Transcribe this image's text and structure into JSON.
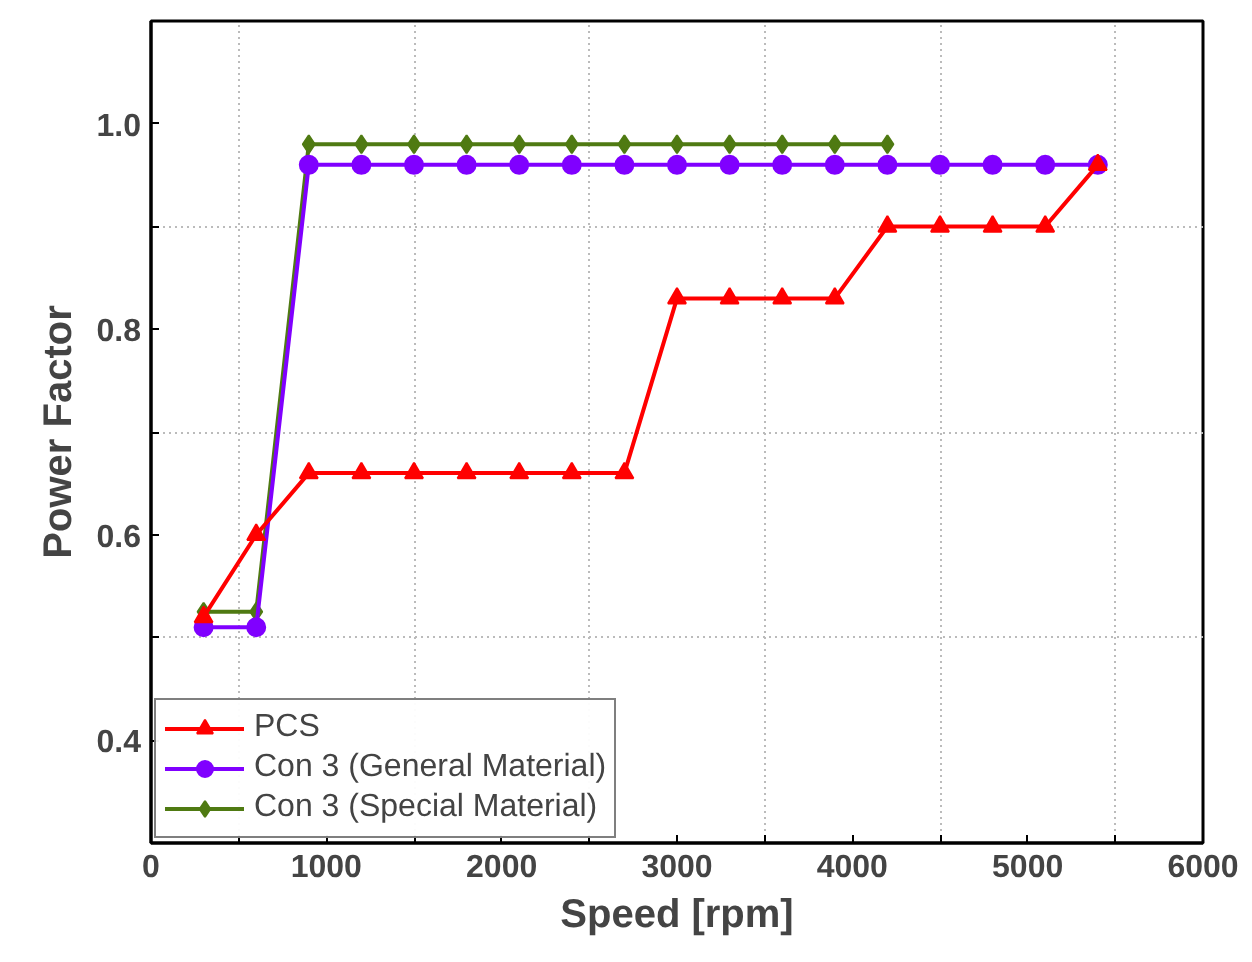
{
  "chart_data": {
    "type": "line",
    "xlabel": "Speed [rpm]",
    "ylabel": "Power Factor",
    "x": [
      300,
      600,
      900,
      1200,
      1500,
      1800,
      2100,
      2400,
      2700,
      3000,
      3300,
      3600,
      3900,
      4200,
      4500,
      4800,
      5100,
      5400
    ],
    "series": [
      {
        "name": "PCS",
        "color": "#ff0000",
        "marker": "triangle",
        "values": [
          0.52,
          0.6,
          0.66,
          0.66,
          0.66,
          0.66,
          0.66,
          0.66,
          0.66,
          0.83,
          0.83,
          0.83,
          0.83,
          0.9,
          0.9,
          0.9,
          0.9,
          0.96
        ]
      },
      {
        "name": "Con 3 (General Material)",
        "color": "#8000ff",
        "marker": "circle",
        "values": [
          0.51,
          0.51,
          0.96,
          0.96,
          0.96,
          0.96,
          0.96,
          0.96,
          0.96,
          0.96,
          0.96,
          0.96,
          0.96,
          0.96,
          0.96,
          0.96,
          0.96,
          0.96
        ]
      },
      {
        "name": "Con 3 (Special Material)",
        "color": "#4f7a12",
        "marker": "diamond",
        "values": [
          0.525,
          0.525,
          0.98,
          0.98,
          0.98,
          0.98,
          0.98,
          0.98,
          0.98,
          0.98,
          0.98,
          0.98,
          0.98,
          0.98,
          null,
          null,
          null,
          null
        ]
      }
    ],
    "xlim": [
      0,
      6000
    ],
    "ylim": [
      0.3,
      1.1
    ],
    "xticks": [
      0,
      {
        "value": 500,
        "label": null
      },
      1000,
      {
        "value": 1500,
        "label": null
      },
      2000,
      {
        "value": 2500,
        "label": null
      },
      3000,
      {
        "value": 3500,
        "label": null
      },
      4000,
      {
        "value": 4500,
        "label": null
      },
      5000,
      {
        "value": 5500,
        "label": null
      },
      6000
    ],
    "yticks": [
      {
        "value": 0.3,
        "label": null
      },
      0.4,
      {
        "value": 0.5,
        "label": null
      },
      0.6,
      {
        "value": 0.7,
        "label": null
      },
      0.8,
      {
        "value": 0.9,
        "label": null
      },
      {
        "value": 1.0,
        "label": "1.0"
      },
      {
        "value": 1.1,
        "label": null
      }
    ],
    "grid": true,
    "legend": "bottom left",
    "line_style": "solid"
  }
}
